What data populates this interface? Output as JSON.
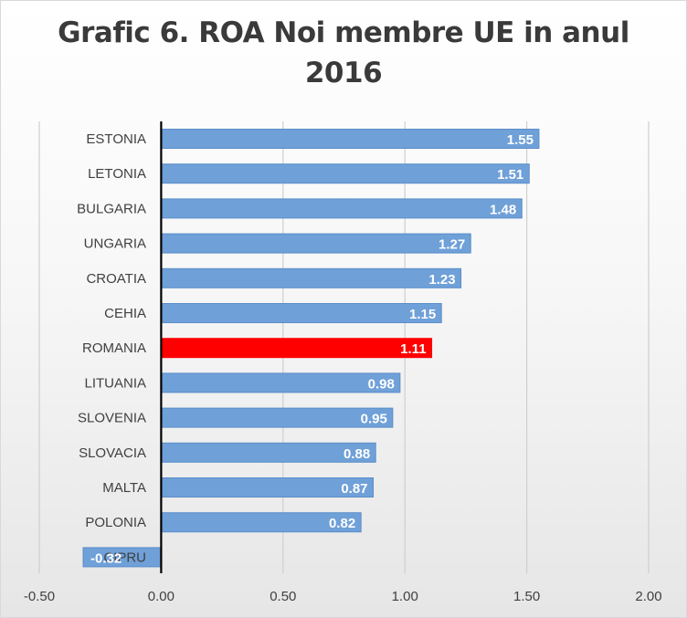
{
  "chart_data": {
    "type": "bar",
    "orientation": "horizontal",
    "title_lines": [
      "Grafic 6. ROA Noi membre UE in anul",
      "2016"
    ],
    "categories": [
      "ESTONIA",
      "LETONIA",
      "BULGARIA",
      "UNGARIA",
      "CROATIA",
      "CEHIA",
      "ROMANIA",
      "LITUANIA",
      "SLOVENIA",
      "SLOVACIA",
      "MALTA",
      "POLONIA",
      "CIPRU"
    ],
    "values": [
      1.55,
      1.51,
      1.48,
      1.27,
      1.23,
      1.15,
      1.11,
      0.98,
      0.95,
      0.88,
      0.87,
      0.82,
      -0.32
    ],
    "value_labels": [
      "1.55",
      "1.51",
      "1.48",
      "1.27",
      "1.23",
      "1.15",
      "1.11",
      "0.98",
      "0.95",
      "0.88",
      "0.87",
      "0.82",
      "-0.32"
    ],
    "highlight": "ROMANIA",
    "colors": {
      "bar": "#6fa0d8",
      "bar_edge": "#5b8ec9",
      "highlight": "#ff0000"
    },
    "xlim": [
      -0.5,
      2.0
    ],
    "x_ticks": [
      -0.5,
      0.0,
      0.5,
      1.0,
      1.5,
      2.0
    ],
    "x_tick_labels": [
      "-0.50",
      "0.00",
      "0.50",
      "1.00",
      "1.50",
      "2.00"
    ],
    "grid": true,
    "legend": "none"
  }
}
